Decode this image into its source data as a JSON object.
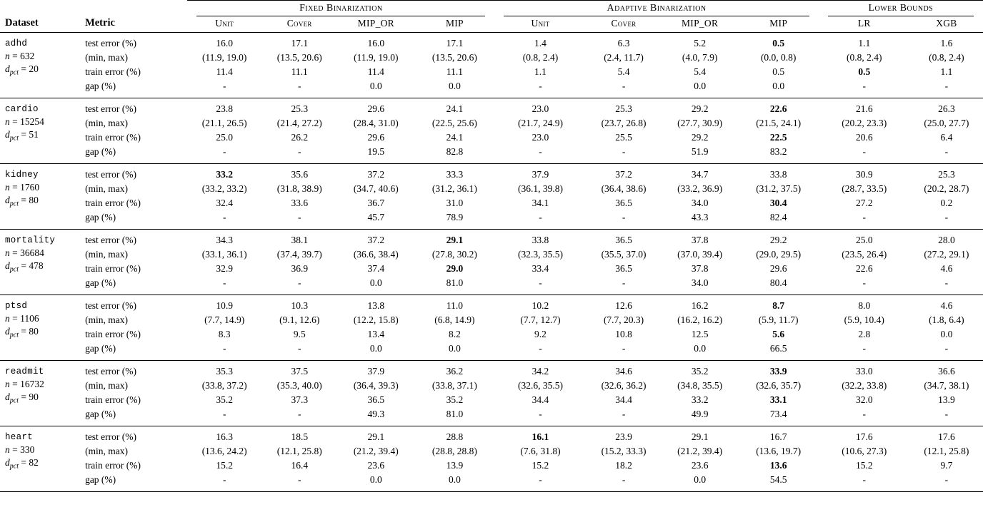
{
  "page": {
    "background": "#ffffff",
    "text_color": "#000000",
    "rule_color": "#000000"
  },
  "table": {
    "corner": {
      "dataset_header": "Dataset",
      "metric_header": "Metric"
    },
    "groups": [
      {
        "label": "Fixed Binarization",
        "columns": [
          "Unit",
          "Cover",
          "MIP_OR",
          "MIP"
        ]
      },
      {
        "label": "Adaptive Binarization",
        "columns": [
          "Unit",
          "Cover",
          "MIP_OR",
          "MIP"
        ]
      },
      {
        "label": "Lower Bounds",
        "columns": [
          "LR",
          "XGB"
        ]
      }
    ],
    "metric_labels": [
      "test error (%)",
      "(min, max)",
      "train error (%)",
      "gap (%)"
    ],
    "datasets": [
      {
        "name": "adhd",
        "n_var": "n",
        "n_rest": " = 632",
        "d_base": "d",
        "d_sub": "pct",
        "d_rest": " = 20",
        "rows": [
          {
            "metric": "test error (%)",
            "values": [
              "16.0",
              "17.1",
              "16.0",
              "17.1",
              "1.4",
              "6.3",
              "5.2",
              "0.5",
              "1.1",
              "1.6"
            ],
            "bold": [
              7
            ]
          },
          {
            "metric": "(min, max)",
            "values": [
              "(11.9, 19.0)",
              "(13.5, 20.6)",
              "(11.9, 19.0)",
              "(13.5, 20.6)",
              "(0.8, 2.4)",
              "(2.4, 11.7)",
              "(4.0, 7.9)",
              "(0.0, 0.8)",
              "(0.8, 2.4)",
              "(0.8, 2.4)"
            ],
            "bold": []
          },
          {
            "metric": "train error (%)",
            "values": [
              "11.4",
              "11.1",
              "11.4",
              "11.1",
              "1.1",
              "5.4",
              "5.4",
              "0.5",
              "0.5",
              "1.1"
            ],
            "bold": [
              8
            ]
          },
          {
            "metric": "gap (%)",
            "values": [
              "-",
              "-",
              "0.0",
              "0.0",
              "-",
              "-",
              "0.0",
              "0.0",
              "-",
              "-"
            ],
            "bold": []
          }
        ]
      },
      {
        "name": "cardio",
        "n_var": "n",
        "n_rest": " = 15254",
        "d_base": "d",
        "d_sub": "pct",
        "d_rest": " = 51",
        "rows": [
          {
            "metric": "test error (%)",
            "values": [
              "23.8",
              "25.3",
              "29.6",
              "24.1",
              "23.0",
              "25.3",
              "29.2",
              "22.6",
              "21.6",
              "26.3"
            ],
            "bold": [
              7
            ]
          },
          {
            "metric": "(min, max)",
            "values": [
              "(21.1, 26.5)",
              "(21.4, 27.2)",
              "(28.4, 31.0)",
              "(22.5, 25.6)",
              "(21.7, 24.9)",
              "(23.7, 26.8)",
              "(27.7, 30.9)",
              "(21.5, 24.1)",
              "(20.2, 23.3)",
              "(25.0, 27.7)"
            ],
            "bold": []
          },
          {
            "metric": "train error (%)",
            "values": [
              "25.0",
              "26.2",
              "29.6",
              "24.1",
              "23.0",
              "25.5",
              "29.2",
              "22.5",
              "20.6",
              "6.4"
            ],
            "bold": [
              7
            ]
          },
          {
            "metric": "gap (%)",
            "values": [
              "-",
              "-",
              "19.5",
              "82.8",
              "-",
              "-",
              "51.9",
              "83.2",
              "-",
              "-"
            ],
            "bold": []
          }
        ]
      },
      {
        "name": "kidney",
        "n_var": "n",
        "n_rest": " = 1760",
        "d_base": "d",
        "d_sub": "pct",
        "d_rest": " = 80",
        "rows": [
          {
            "metric": "test error (%)",
            "values": [
              "33.2",
              "35.6",
              "37.2",
              "33.3",
              "37.9",
              "37.2",
              "34.7",
              "33.8",
              "30.9",
              "25.3"
            ],
            "bold": [
              0
            ]
          },
          {
            "metric": "(min, max)",
            "values": [
              "(33.2, 33.2)",
              "(31.8, 38.9)",
              "(34.7, 40.6)",
              "(31.2, 36.1)",
              "(36.1, 39.8)",
              "(36.4, 38.6)",
              "(33.2, 36.9)",
              "(31.2, 37.5)",
              "(28.7, 33.5)",
              "(20.2, 28.7)"
            ],
            "bold": []
          },
          {
            "metric": "train error (%)",
            "values": [
              "32.4",
              "33.6",
              "36.7",
              "31.0",
              "34.1",
              "36.5",
              "34.0",
              "30.4",
              "27.2",
              "0.2"
            ],
            "bold": [
              7
            ]
          },
          {
            "metric": "gap (%)",
            "values": [
              "-",
              "-",
              "45.7",
              "78.9",
              "-",
              "-",
              "43.3",
              "82.4",
              "-",
              "-"
            ],
            "bold": []
          }
        ]
      },
      {
        "name": "mortality",
        "n_var": "n",
        "n_rest": " = 36684",
        "d_base": "d",
        "d_sub": "pct",
        "d_rest": " = 478",
        "rows": [
          {
            "metric": "test error (%)",
            "values": [
              "34.3",
              "38.1",
              "37.2",
              "29.1",
              "33.8",
              "36.5",
              "37.8",
              "29.2",
              "25.0",
              "28.0"
            ],
            "bold": [
              3
            ]
          },
          {
            "metric": "(min, max)",
            "values": [
              "(33.1, 36.1)",
              "(37.4, 39.7)",
              "(36.6, 38.4)",
              "(27.8, 30.2)",
              "(32.3, 35.5)",
              "(35.5, 37.0)",
              "(37.0, 39.4)",
              "(29.0, 29.5)",
              "(23.5, 26.4)",
              "(27.2, 29.1)"
            ],
            "bold": []
          },
          {
            "metric": "train error (%)",
            "values": [
              "32.9",
              "36.9",
              "37.4",
              "29.0",
              "33.4",
              "36.5",
              "37.8",
              "29.6",
              "22.6",
              "4.6"
            ],
            "bold": [
              3
            ]
          },
          {
            "metric": "gap (%)",
            "values": [
              "-",
              "-",
              "0.0",
              "81.0",
              "-",
              "-",
              "34.0",
              "80.4",
              "-",
              "-"
            ],
            "bold": []
          }
        ]
      },
      {
        "name": "ptsd",
        "n_var": "n",
        "n_rest": " = 1106",
        "d_base": "d",
        "d_sub": "pct",
        "d_rest": " = 80",
        "rows": [
          {
            "metric": "test error (%)",
            "values": [
              "10.9",
              "10.3",
              "13.8",
              "11.0",
              "10.2",
              "12.6",
              "16.2",
              "8.7",
              "8.0",
              "4.6"
            ],
            "bold": [
              7
            ]
          },
          {
            "metric": "(min, max)",
            "values": [
              "(7.7, 14.9)",
              "(9.1, 12.6)",
              "(12.2, 15.8)",
              "(6.8, 14.9)",
              "(7.7, 12.7)",
              "(7.7, 20.3)",
              "(16.2, 16.2)",
              "(5.9, 11.7)",
              "(5.9, 10.4)",
              "(1.8, 6.4)"
            ],
            "bold": []
          },
          {
            "metric": "train error (%)",
            "values": [
              "8.3",
              "9.5",
              "13.4",
              "8.2",
              "9.2",
              "10.8",
              "12.5",
              "5.6",
              "2.8",
              "0.0"
            ],
            "bold": [
              7
            ]
          },
          {
            "metric": "gap (%)",
            "values": [
              "-",
              "-",
              "0.0",
              "0.0",
              "-",
              "-",
              "0.0",
              "66.5",
              "-",
              "-"
            ],
            "bold": []
          }
        ]
      },
      {
        "name": "readmit",
        "n_var": "n",
        "n_rest": " = 16732",
        "d_base": "d",
        "d_sub": "pct",
        "d_rest": " = 90",
        "rows": [
          {
            "metric": "test error (%)",
            "values": [
              "35.3",
              "37.5",
              "37.9",
              "36.2",
              "34.2",
              "34.6",
              "35.2",
              "33.9",
              "33.0",
              "36.6"
            ],
            "bold": [
              7
            ]
          },
          {
            "metric": "(min, max)",
            "values": [
              "(33.8, 37.2)",
              "(35.3, 40.0)",
              "(36.4, 39.3)",
              "(33.8, 37.1)",
              "(32.6, 35.5)",
              "(32.6, 36.2)",
              "(34.8, 35.5)",
              "(32.6, 35.7)",
              "(32.2, 33.8)",
              "(34.7, 38.1)"
            ],
            "bold": []
          },
          {
            "metric": "train error (%)",
            "values": [
              "35.2",
              "37.3",
              "36.5",
              "35.2",
              "34.4",
              "34.4",
              "33.2",
              "33.1",
              "32.0",
              "13.9"
            ],
            "bold": [
              7
            ]
          },
          {
            "metric": "gap (%)",
            "values": [
              "-",
              "-",
              "49.3",
              "81.0",
              "-",
              "-",
              "49.9",
              "73.4",
              "-",
              "-"
            ],
            "bold": []
          }
        ]
      },
      {
        "name": "heart",
        "n_var": "n",
        "n_rest": " = 330",
        "d_base": "d",
        "d_sub": "pct",
        "d_rest": " = 82",
        "rows": [
          {
            "metric": "test error (%)",
            "values": [
              "16.3",
              "18.5",
              "29.1",
              "28.8",
              "16.1",
              "23.9",
              "29.1",
              "16.7",
              "17.6",
              "17.6"
            ],
            "bold": [
              4
            ]
          },
          {
            "metric": "(min, max)",
            "values": [
              "(13.6, 24.2)",
              "(12.1, 25.8)",
              "(21.2, 39.4)",
              "(28.8, 28.8)",
              "(7.6, 31.8)",
              "(15.2, 33.3)",
              "(21.2, 39.4)",
              "(13.6, 19.7)",
              "(10.6, 27.3)",
              "(12.1, 25.8)"
            ],
            "bold": []
          },
          {
            "metric": "train error (%)",
            "values": [
              "15.2",
              "16.4",
              "23.6",
              "13.9",
              "15.2",
              "18.2",
              "23.6",
              "13.6",
              "15.2",
              "9.7"
            ],
            "bold": [
              7
            ]
          },
          {
            "metric": "gap (%)",
            "values": [
              "-",
              "-",
              "0.0",
              "0.0",
              "-",
              "-",
              "0.0",
              "54.5",
              "-",
              "-"
            ],
            "bold": []
          }
        ]
      }
    ]
  }
}
